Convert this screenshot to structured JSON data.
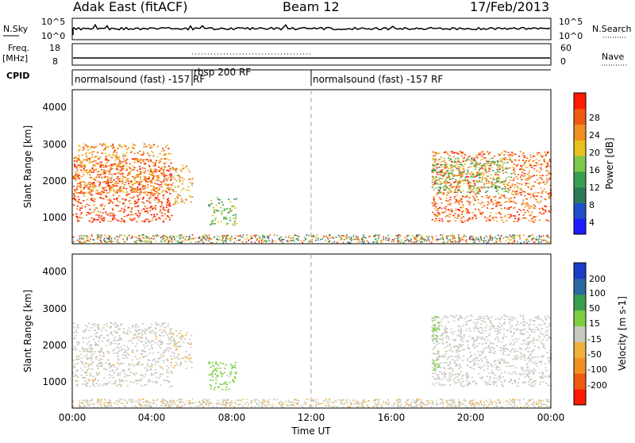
{
  "header": {
    "station": "Adak East (fitACF)",
    "beam": "Beam 12",
    "date": "17/Feb/2013"
  },
  "top_panels": {
    "nsky_label": "N.Sky",
    "nsearch_label": "N.Search",
    "nsky_ticks": [
      "10^5",
      "10^0"
    ],
    "nsearch_ticks": [
      "10^5",
      "10^0"
    ],
    "freq_label": "Freq.",
    "freq_unit": "[MHz]",
    "freq_ticks": [
      "18",
      "8"
    ],
    "nave_label": "Nave",
    "nave_ticks": [
      "60",
      "0"
    ],
    "cpid_label": "CPID",
    "cpid_segments": [
      {
        "label": "normalsound (fast) -157 RF"
      },
      {
        "label": "rbsp 200 RF"
      },
      {
        "label": "normalsound (fast) -157 RF"
      }
    ]
  },
  "power_panel": {
    "ylabel": "Slant Range [km]",
    "yticks": [
      "4000",
      "3000",
      "2000",
      "1000"
    ],
    "colorbar_label": "Power [dB]",
    "colorbar_ticks": [
      "28",
      "24",
      "20",
      "16",
      "12",
      "8",
      "4"
    ]
  },
  "velocity_panel": {
    "ylabel": "Slant Range [km]",
    "yticks": [
      "4000",
      "3000",
      "2000",
      "1000"
    ],
    "colorbar_label": "Velocity [m s-1]",
    "colorbar_ticks": [
      "200",
      "100",
      "50",
      "15",
      "-15",
      "-50",
      "-100",
      "-200"
    ]
  },
  "x_axis": {
    "label": "Time UT",
    "ticks": [
      "00:00",
      "04:00",
      "08:00",
      "12:00",
      "16:00",
      "20:00",
      "00:00"
    ]
  },
  "chart_data": {
    "type": "heatmap",
    "title": "Adak East (fitACF)",
    "x_range": [
      "00:00",
      "24:00"
    ],
    "y_range_km": [
      180,
      4500
    ],
    "power_colorscale": {
      "range": [
        0,
        30
      ],
      "colors": [
        "#1c1cff",
        "#2050c8",
        "#2a7a5a",
        "#3a9f50",
        "#7cc84a",
        "#e8c020",
        "#f09020",
        "#f05a10",
        "#ff1a00"
      ]
    },
    "velocity_colorscale": {
      "range": [
        -250,
        250
      ],
      "colors": [
        "#ff1a00",
        "#f05a10",
        "#f09020",
        "#f0b040",
        "#c8c8c0",
        "#7cd040",
        "#3a9f50",
        "#2a6aa0",
        "#1c3cc8"
      ]
    },
    "series": [
      {
        "name": "power",
        "regions": [
          {
            "t0": 0.0,
            "t1": 5.0,
            "r0": 800,
            "r1": 2600,
            "value": 26
          },
          {
            "t0": 0.1,
            "t1": 4.9,
            "r0": 1600,
            "r1": 3000,
            "value": 22
          },
          {
            "t0": 5.0,
            "t1": 6.0,
            "r0": 1300,
            "r1": 2400,
            "value": 20
          },
          {
            "t0": 6.8,
            "t1": 8.2,
            "r0": 700,
            "r1": 1500,
            "value": 14
          },
          {
            "t0": 18.0,
            "t1": 24.0,
            "r0": 800,
            "r1": 2800,
            "value": 24
          },
          {
            "t0": 18.0,
            "t1": 22.0,
            "r0": 1600,
            "r1": 2600,
            "value": 14
          }
        ]
      },
      {
        "name": "velocity",
        "regions": [
          {
            "t0": 0.0,
            "t1": 5.0,
            "r0": 800,
            "r1": 2600,
            "value": -10
          },
          {
            "t0": 5.0,
            "t1": 6.0,
            "r0": 1300,
            "r1": 2400,
            "value": -20
          },
          {
            "t0": 6.8,
            "t1": 8.2,
            "r0": 700,
            "r1": 1500,
            "value": 45
          },
          {
            "t0": 18.0,
            "t1": 24.0,
            "r0": 800,
            "r1": 2800,
            "value": 5
          },
          {
            "t0": 18.0,
            "t1": 18.4,
            "r0": 1200,
            "r1": 2800,
            "value": 40
          }
        ]
      }
    ]
  }
}
